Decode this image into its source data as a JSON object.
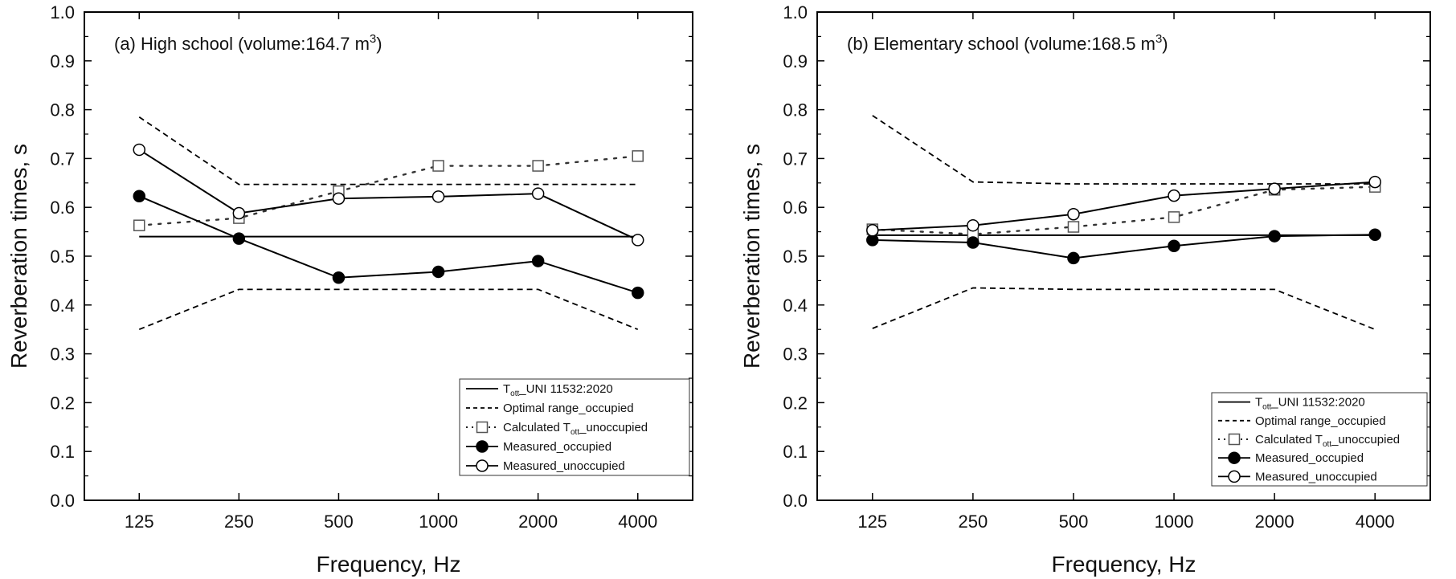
{
  "chart_data": [
    {
      "type": "line",
      "title": "(a) High school (volume:164.7 m",
      "title_sup": "3",
      "title_end": ")",
      "xlabel": "Frequency, Hz",
      "ylabel": "Reverberation times, s",
      "categories": [
        "125",
        "250",
        "500",
        "1000",
        "2000",
        "4000"
      ],
      "ylim": [
        0,
        1
      ],
      "yticks": [
        "0.0",
        "0.1",
        "0.2",
        "0.3",
        "0.4",
        "0.5",
        "0.6",
        "0.7",
        "0.8",
        "0.9",
        "1.0"
      ],
      "series": [
        {
          "key": "tott",
          "name": "UNI 11532:2020",
          "sub": "ott",
          "prefix": "T",
          "style": "solid",
          "marker": "none",
          "values": [
            0.54,
            0.54,
            0.54,
            0.54,
            0.54,
            0.54
          ]
        },
        {
          "key": "optimal",
          "name": "Optimal range_occupied",
          "style": "dashed",
          "marker": "none",
          "upper": [
            0.785,
            0.647,
            0.647,
            0.647,
            0.647,
            0.647
          ],
          "lower": [
            0.35,
            0.432,
            0.432,
            0.432,
            0.432,
            0.35
          ]
        },
        {
          "key": "calculated",
          "name": "Calculated T",
          "sub": "ott",
          "suffix": "_unoccupied",
          "style": "dotted",
          "marker": "open-square",
          "values": [
            0.563,
            0.578,
            0.633,
            0.685,
            0.685,
            0.705
          ]
        },
        {
          "key": "measured_occupied",
          "name": "Measured_occupied",
          "style": "solid",
          "marker": "filled-circle",
          "values": [
            0.623,
            0.536,
            0.456,
            0.468,
            0.49,
            0.425
          ]
        },
        {
          "key": "measured_unoccupied",
          "name": "Measured_unoccupied",
          "style": "solid",
          "marker": "open-circle",
          "values": [
            0.718,
            0.588,
            0.618,
            0.622,
            0.628,
            0.533
          ]
        }
      ],
      "legend_position": "bottom-right"
    },
    {
      "type": "line",
      "title": "(b) Elementary school (volume:168.5 m",
      "title_sup": "3",
      "title_end": ")",
      "xlabel": "Frequency, Hz",
      "ylabel": "Reverberation times, s",
      "categories": [
        "125",
        "250",
        "500",
        "1000",
        "2000",
        "4000"
      ],
      "ylim": [
        0,
        1
      ],
      "yticks": [
        "0.0",
        "0.1",
        "0.2",
        "0.3",
        "0.4",
        "0.5",
        "0.6",
        "0.7",
        "0.8",
        "0.9",
        "1.0"
      ],
      "series": [
        {
          "key": "tott",
          "name": "UNI 11532:2020",
          "sub": "ott",
          "prefix": "T",
          "style": "solid",
          "marker": "none",
          "values": [
            0.543,
            0.543,
            0.543,
            0.543,
            0.543,
            0.543
          ]
        },
        {
          "key": "optimal",
          "name": "Optimal range_occupied",
          "style": "dashed",
          "marker": "none",
          "upper": [
            0.788,
            0.652,
            0.648,
            0.648,
            0.648,
            0.648
          ],
          "lower": [
            0.352,
            0.435,
            0.432,
            0.432,
            0.432,
            0.35
          ]
        },
        {
          "key": "calculated",
          "name": "Calculated T",
          "sub": "ott",
          "suffix": "_unoccupied",
          "style": "dotted",
          "marker": "open-square",
          "values": [
            0.555,
            0.545,
            0.56,
            0.58,
            0.636,
            0.642
          ]
        },
        {
          "key": "measured_occupied",
          "name": "Measured_occupied",
          "style": "solid",
          "marker": "filled-circle",
          "values": [
            0.533,
            0.528,
            0.496,
            0.521,
            0.541,
            0.544
          ]
        },
        {
          "key": "measured_unoccupied",
          "name": "Measured_unoccupied",
          "style": "solid",
          "marker": "open-circle",
          "values": [
            0.553,
            0.563,
            0.586,
            0.624,
            0.638,
            0.652
          ]
        }
      ],
      "legend_position": "bottom-right"
    }
  ]
}
